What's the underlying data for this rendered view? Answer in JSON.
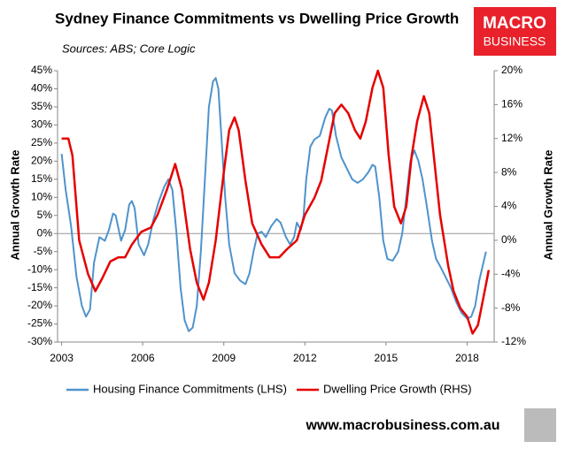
{
  "chart_data": {
    "type": "line",
    "title": "Sydney Finance Commitments vs Dwelling Price Growth",
    "subtitle": "Sources: ABS; Core Logic",
    "ylabel": "Annual Growth Rate",
    "y2label": "Annual Growth Rate",
    "xlim": [
      2002.85,
      2019.0
    ],
    "xticks": [
      2003,
      2006,
      2009,
      2012,
      2015,
      2018
    ],
    "ylim": [
      -30,
      45
    ],
    "yticks": [
      {
        "value": -30,
        "label": "-30%"
      },
      {
        "value": -25,
        "label": "-25%"
      },
      {
        "value": -20,
        "label": "-20%"
      },
      {
        "value": -15,
        "label": "-15%"
      },
      {
        "value": -10,
        "label": "-10%"
      },
      {
        "value": -5,
        "label": "-5%"
      },
      {
        "value": 0,
        "label": "0%"
      },
      {
        "value": 5,
        "label": "5%"
      },
      {
        "value": 10,
        "label": "10%"
      },
      {
        "value": 15,
        "label": "15%"
      },
      {
        "value": 20,
        "label": "20%"
      },
      {
        "value": 25,
        "label": "25%"
      },
      {
        "value": 30,
        "label": "30%"
      },
      {
        "value": 35,
        "label": "35%"
      },
      {
        "value": 40,
        "label": "40%"
      },
      {
        "value": 45,
        "label": "45%"
      }
    ],
    "y2lim": [
      -12,
      20
    ],
    "y2ticks": [
      {
        "value": -12,
        "label": "-12%"
      },
      {
        "value": -8,
        "label": "-8%"
      },
      {
        "value": -4,
        "label": "-4%"
      },
      {
        "value": 0,
        "label": "0%"
      },
      {
        "value": 4,
        "label": "4%"
      },
      {
        "value": 8,
        "label": "8%"
      },
      {
        "value": 12,
        "label": "12%"
      },
      {
        "value": 16,
        "label": "16%"
      },
      {
        "value": 20,
        "label": "20%"
      }
    ],
    "zero_line": true,
    "series": [
      {
        "name": "Housing Finance Commitments (LHS)",
        "color": "#4f93cc",
        "axis": "y",
        "x": [
          2003.0,
          2003.15,
          2003.35,
          2003.55,
          2003.75,
          2003.9,
          2004.05,
          2004.2,
          2004.4,
          2004.6,
          2004.75,
          2004.9,
          2005.0,
          2005.2,
          2005.35,
          2005.5,
          2005.6,
          2005.7,
          2005.85,
          2006.05,
          2006.2,
          2006.4,
          2006.6,
          2006.8,
          2006.95,
          2007.1,
          2007.25,
          2007.4,
          2007.55,
          2007.7,
          2007.85,
          2008.0,
          2008.15,
          2008.3,
          2008.45,
          2008.6,
          2008.7,
          2008.8,
          2008.9,
          2009.05,
          2009.2,
          2009.4,
          2009.6,
          2009.8,
          2009.95,
          2010.1,
          2010.25,
          2010.4,
          2010.55,
          2010.75,
          2010.95,
          2011.1,
          2011.3,
          2011.45,
          2011.6,
          2011.7,
          2011.85,
          2011.95,
          2012.05,
          2012.2,
          2012.35,
          2012.55,
          2012.75,
          2012.9,
          2013.0,
          2013.15,
          2013.35,
          2013.55,
          2013.75,
          2013.95,
          2014.15,
          2014.35,
          2014.5,
          2014.6,
          2014.75,
          2014.9,
          2015.05,
          2015.25,
          2015.45,
          2015.6,
          2015.75,
          2015.9,
          2016.05,
          2016.2,
          2016.35,
          2016.5,
          2016.7,
          2016.85,
          2017.0,
          2017.2,
          2017.4,
          2017.6,
          2017.8,
          2018.0,
          2018.15,
          2018.3,
          2018.45,
          2018.7
        ],
        "values": [
          22,
          12,
          2,
          -12,
          -20,
          -23,
          -21,
          -8,
          -1,
          -2,
          1,
          5.5,
          5,
          -2,
          1,
          8,
          9,
          7,
          -3,
          -6,
          -3,
          4,
          9,
          13,
          15,
          12,
          0,
          -15,
          -24,
          -27,
          -26,
          -20,
          -5,
          15,
          35,
          42,
          43,
          40,
          28,
          10,
          -3,
          -11,
          -13,
          -14,
          -11,
          -5,
          0,
          0.5,
          -1,
          2,
          4,
          3,
          -1,
          -3,
          -1,
          3,
          1,
          5,
          15,
          24,
          26,
          27,
          32,
          34.5,
          34,
          27,
          21,
          18,
          15,
          14,
          15,
          17,
          19,
          18.5,
          10,
          -2,
          -7,
          -7.5,
          -5,
          0,
          10,
          20,
          23,
          20,
          15,
          8,
          -2,
          -7,
          -9,
          -12,
          -15,
          -19,
          -22,
          -23.5,
          -23,
          -20,
          -13,
          -5
        ]
      },
      {
        "name": "Dwelling Price Growth (RHS)",
        "color": "#e60000",
        "axis": "y2",
        "x": [
          2003.0,
          2003.25,
          2003.4,
          2003.65,
          2003.98,
          2004.25,
          2004.5,
          2004.8,
          2005.1,
          2005.35,
          2005.6,
          2005.95,
          2006.3,
          2006.55,
          2006.9,
          2007.2,
          2007.45,
          2007.75,
          2008.0,
          2008.25,
          2008.45,
          2008.7,
          2009.0,
          2009.2,
          2009.4,
          2009.55,
          2009.8,
          2010.05,
          2010.4,
          2010.7,
          2011.05,
          2011.35,
          2011.7,
          2012.0,
          2012.35,
          2012.6,
          2012.85,
          2013.1,
          2013.35,
          2013.6,
          2013.85,
          2014.05,
          2014.25,
          2014.5,
          2014.7,
          2014.9,
          2015.1,
          2015.3,
          2015.55,
          2015.75,
          2015.95,
          2016.15,
          2016.4,
          2016.6,
          2016.8,
          2017.0,
          2017.3,
          2017.5,
          2017.75,
          2018.0,
          2018.2,
          2018.4,
          2018.65,
          2018.8
        ],
        "values": [
          12,
          12,
          10,
          0,
          -4,
          -6,
          -4.5,
          -2.5,
          -2,
          -2,
          -0.5,
          1,
          1.5,
          3,
          6,
          9,
          6,
          -1,
          -5,
          -7,
          -5,
          0,
          8,
          13,
          14.5,
          13,
          7,
          2,
          -0.5,
          -2,
          -2,
          -1,
          0,
          3,
          5,
          7,
          11,
          15,
          16,
          15,
          13,
          12,
          14,
          18,
          20,
          18,
          10,
          4,
          2,
          4,
          10,
          14,
          17,
          15,
          9,
          3,
          -3,
          -6,
          -8,
          -9,
          -11,
          -10,
          -6,
          -3.5
        ]
      }
    ]
  },
  "logo": {
    "line1": "MACRO",
    "line2": "BUSINESS"
  },
  "footer": "www.macrobusiness.com.au"
}
